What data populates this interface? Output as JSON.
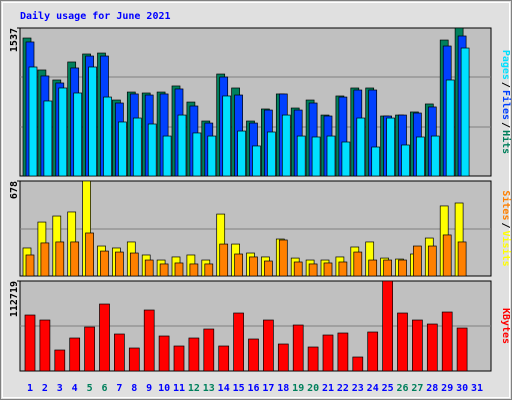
{
  "chart_data": [
    {
      "type": "bar",
      "title": "Daily usage for June 2021",
      "ylim": [
        0,
        1537
      ],
      "yticks": [
        1537
      ],
      "legend_separator": "/",
      "series": [
        {
          "name": "Hits",
          "color": "#00805c",
          "values": [
            1433,
            1101,
            997,
            1184,
            1267,
            1277,
            789,
            872,
            862,
            872,
            935,
            768,
            571,
            1059,
            914,
            571,
            696,
            852,
            706,
            789,
            633,
            831,
            914,
            914,
            623,
            633,
            665,
            748,
            1412,
            1537,
            null
          ]
        },
        {
          "name": "Files",
          "color": "#0040ff",
          "values": [
            1392,
            1039,
            966,
            1122,
            1246,
            1246,
            758,
            852,
            841,
            852,
            904,
            727,
            550,
            1028,
            841,
            550,
            685,
            852,
            685,
            758,
            623,
            820,
            893,
            893,
            623,
            633,
            654,
            717,
            1350,
            1454,
            null
          ]
        },
        {
          "name": "Pages",
          "color": "#00e0ff",
          "values": [
            1132,
            779,
            914,
            862,
            1132,
            820,
            561,
            602,
            540,
            415,
            633,
            447,
            415,
            831,
            467,
            312,
            457,
            633,
            415,
            405,
            415,
            353,
            602,
            301,
            602,
            322,
            405,
            415,
            997,
            1329,
            null
          ]
        }
      ]
    },
    {
      "type": "bar",
      "ylim": [
        0,
        678
      ],
      "yticks": [
        678
      ],
      "legend_separator": "/",
      "series": [
        {
          "name": "Visits",
          "color": "#ffff00",
          "values": [
            200,
            385,
            428,
            457,
            678,
            214,
            200,
            243,
            150,
            114,
            136,
            150,
            114,
            442,
            228,
            164,
            136,
            264,
            128,
            114,
            114,
            136,
            207,
            243,
            128,
            121,
            157,
            271,
            500,
            521,
            null
          ]
        },
        {
          "name": "Sites",
          "color": "#ff8000",
          "values": [
            150,
            236,
            243,
            243,
            307,
            178,
            171,
            164,
            114,
            86,
            93,
            86,
            86,
            228,
            157,
            136,
            107,
            257,
            100,
            86,
            93,
            100,
            171,
            114,
            114,
            114,
            214,
            214,
            293,
            243,
            null
          ]
        }
      ]
    },
    {
      "type": "bar",
      "ylim": [
        0,
        112719
      ],
      "yticks": [
        112719
      ],
      "categories": [
        "1",
        "2",
        "3",
        "4",
        "5",
        "6",
        "7",
        "8",
        "9",
        "10",
        "11",
        "12",
        "13",
        "14",
        "15",
        "16",
        "17",
        "18",
        "19",
        "20",
        "21",
        "22",
        "23",
        "24",
        "25",
        "26",
        "27",
        "28",
        "29",
        "30",
        "31"
      ],
      "category_colors": [
        "#0000ff",
        "#0000ff",
        "#0000ff",
        "#0000ff",
        "#00805c",
        "#00805c",
        "#0000ff",
        "#0000ff",
        "#0000ff",
        "#0000ff",
        "#0000ff",
        "#00805c",
        "#00805c",
        "#0000ff",
        "#0000ff",
        "#0000ff",
        "#0000ff",
        "#0000ff",
        "#00805c",
        "#00805c",
        "#0000ff",
        "#0000ff",
        "#0000ff",
        "#0000ff",
        "#0000ff",
        "#00805c",
        "#00805c",
        "#0000ff",
        "#0000ff",
        "#0000ff",
        "#0000ff"
      ],
      "series": [
        {
          "name": "KBytes",
          "color": "#ff0000",
          "values": [
            70112,
            63852,
            26292,
            41316,
            55088,
            83884,
            46324,
            28796,
            76372,
            43820,
            31300,
            41316,
            52584,
            31300,
            72616,
            40064,
            63852,
            33804,
            57592,
            30048,
            45072,
            47576,
            17528,
            48828,
            112719,
            72616,
            63852,
            58844,
            73868,
            53836,
            null
          ]
        }
      ]
    }
  ]
}
